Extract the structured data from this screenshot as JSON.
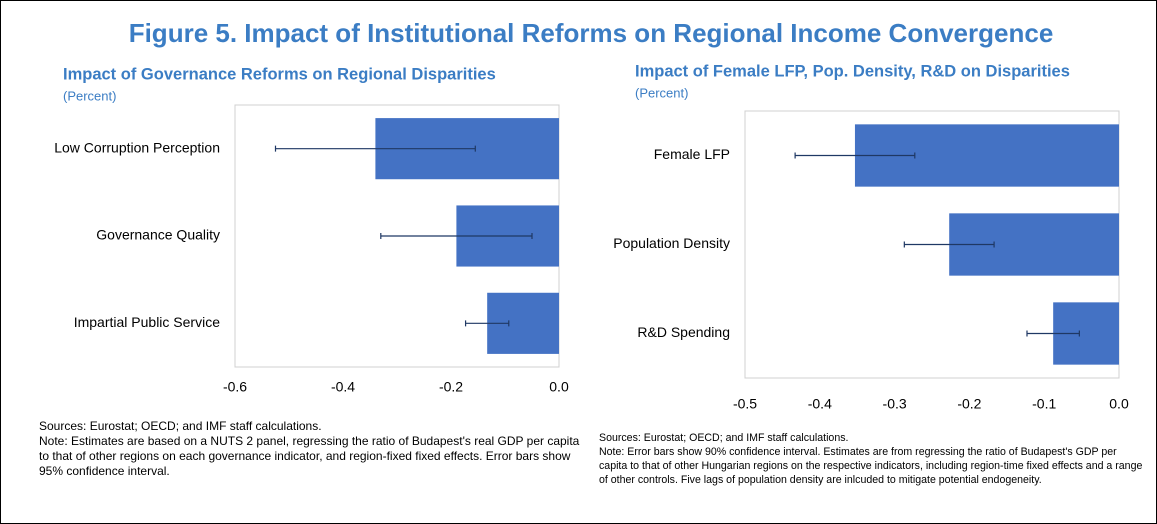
{
  "title": "Figure 5. Impact of Institutional Reforms on Regional Income Convergence",
  "chart_data": [
    {
      "type": "barh",
      "title": "Impact of Governance Reforms on Regional Disparities",
      "subtitle": "(Percent)",
      "categories": [
        "Low Corruption Perception",
        "Governance Quality",
        "Impartial Public Service"
      ],
      "values": [
        -0.34,
        -0.19,
        -0.133
      ],
      "errors": [
        0.185,
        0.14,
        0.04
      ],
      "color": "#4472c4",
      "xlim": [
        -0.6,
        0
      ],
      "xticks": [
        -0.6,
        -0.4,
        -0.2,
        {
          "value": 0,
          "label": "0.0"
        }
      ],
      "sources": "Sources: Eurostat; OECD; and IMF staff calculations.",
      "note": "Note: Estimates are based on a NUTS 2 panel, regressing the ratio of Budapest's real GDP per capita to that of other regions on each governance indicator, and region-fixed fixed effects. Error bars show 95% confidence interval."
    },
    {
      "type": "barh",
      "title": "Impact of Female LFP, Pop. Density, R&D on Disparities",
      "subtitle": "(Percent)",
      "categories": [
        "Female LFP",
        "Population Density",
        "R&D Spending"
      ],
      "values": [
        -0.353,
        -0.227,
        -0.088
      ],
      "errors": [
        0.08,
        0.06,
        0.035
      ],
      "color": "#4472c4",
      "xlim": [
        -0.5,
        0
      ],
      "xticks": [
        -0.5,
        -0.4,
        -0.3,
        -0.2,
        -0.1,
        {
          "value": 0,
          "label": "0.0"
        }
      ],
      "sources": "Sources: Eurostat; OECD; and IMF staff calculations.",
      "note": "Note: Error bars show 90% confidence interval. Estimates are from regressing the ratio of Budapest's GDP per capita to that of other Hungarian regions on the respective indicators, including region-time fixed effects and a range of other controls. Five lags of population density are inlcuded to mitigate potential endogeneity."
    }
  ]
}
